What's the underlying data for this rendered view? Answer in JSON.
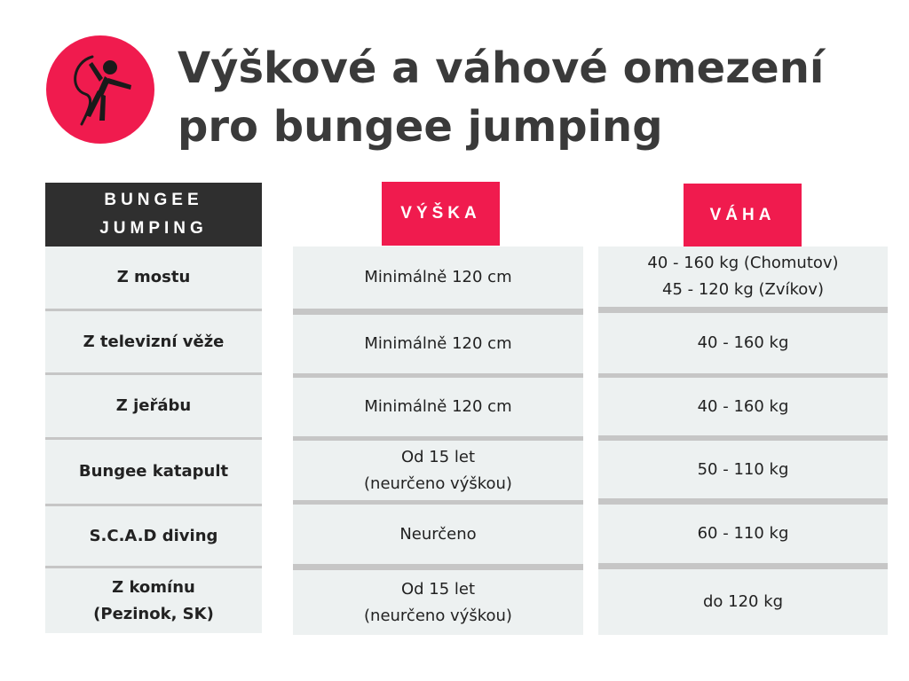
{
  "title": {
    "line1": "Výškové a váhové omezení",
    "line2": "pro bungee jumping"
  },
  "logo": {
    "icon": "bungee-jumper-icon",
    "color": "#f01b4e"
  },
  "table": {
    "headers": {
      "activity": "BUNGEE\nJUMPING",
      "height": "VÝŠKA",
      "weight": "VÁHA"
    },
    "rows": [
      {
        "activity": "Z mostu",
        "height": "Minimálně 120 cm",
        "weight": "40 - 160 kg (Chomutov)\n45 - 120 kg (Zvíkov)"
      },
      {
        "activity": "Z televizní věže",
        "height": "Minimálně 120 cm",
        "weight": "40 - 160 kg"
      },
      {
        "activity": "Z jeřábu",
        "height": "Minimálně 120 cm",
        "weight": "40 - 160 kg"
      },
      {
        "activity": "Bungee katapult",
        "height": "Od 15 let\n(neurčeno výškou)",
        "weight": "50 - 110 kg"
      },
      {
        "activity": "S.C.A.D diving",
        "height": "Neurčeno",
        "weight": "60 - 110 kg"
      },
      {
        "activity": "Z komínu\n(Pezinok, SK)",
        "height": "Od 15 let\n(neurčeno výškou)",
        "weight": "do 120 kg"
      }
    ]
  },
  "colors": {
    "accent": "#f01b4e",
    "header_dark": "#2f2f2f",
    "cell_bg": "#edf1f1",
    "separator": "#c6c6c6"
  }
}
